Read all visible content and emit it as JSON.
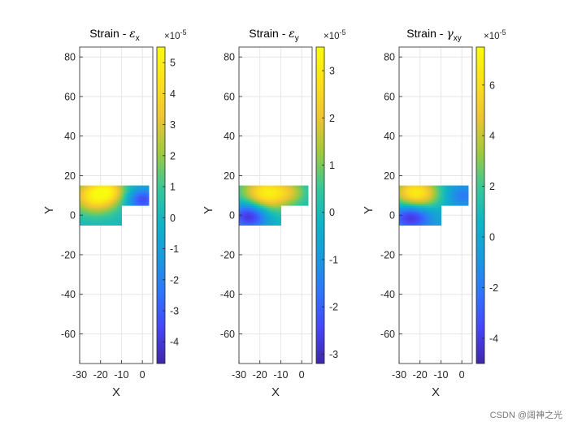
{
  "chart_data": [
    {
      "type": "heatmap",
      "title_main": "Strain - ",
      "title_symbol": "ε",
      "title_sub": "x",
      "xlabel": "X",
      "ylabel": "Y",
      "xlim": [
        -30,
        5
      ],
      "ylim": [
        -75,
        85
      ],
      "xticks": [
        "-30",
        "-20",
        "-10",
        "0"
      ],
      "xtick_values": [
        -30,
        -20,
        -10,
        0
      ],
      "yticks": [
        "80",
        "60",
        "40",
        "20",
        "0",
        "-20",
        "-40",
        "-60"
      ],
      "ytick_values": [
        80,
        60,
        40,
        20,
        0,
        -20,
        -40,
        -60
      ],
      "grid": true,
      "field_region": "L-shaped: x -30..3, y 5..15 and x -30..-10, y -5..5",
      "field_hotspots": [
        {
          "x": -22,
          "y": 10,
          "value": 5.0,
          "spread": 6
        },
        {
          "x": 0,
          "y": 8,
          "value": -3.5,
          "spread": 4
        },
        {
          "x": -15,
          "y": 13,
          "value": 2.0,
          "spread": 4
        }
      ],
      "colorbar": {
        "range": [
          -4.7,
          5.5
        ],
        "ticks": [
          "5",
          "4",
          "3",
          "2",
          "1",
          "0",
          "-1",
          "-2",
          "-3",
          "-4"
        ],
        "tick_values": [
          5,
          4,
          3,
          2,
          1,
          0,
          -1,
          -2,
          -3,
          -4
        ],
        "multiplier": "×10",
        "exponent": "-5"
      }
    },
    {
      "type": "heatmap",
      "title_main": "Strain - ",
      "title_symbol": "ε",
      "title_sub": "y",
      "xlabel": "X",
      "ylabel": "Y",
      "xlim": [
        -30,
        5
      ],
      "ylim": [
        -75,
        85
      ],
      "xticks": [
        "-30",
        "-20",
        "-10",
        "0"
      ],
      "xtick_values": [
        -30,
        -20,
        -10,
        0
      ],
      "yticks": [
        "80",
        "60",
        "40",
        "20",
        "0",
        "-20",
        "-40",
        "-60"
      ],
      "ytick_values": [
        80,
        60,
        40,
        20,
        0,
        -20,
        -40,
        -60
      ],
      "grid": true,
      "field_region": "L-shaped: x -30..3, y 5..15 and x -30..-10, y -5..5",
      "field_hotspots": [
        {
          "x": -17,
          "y": 11,
          "value": 3.2,
          "spread": 6
        },
        {
          "x": -25,
          "y": 0,
          "value": -3.0,
          "spread": 5
        },
        {
          "x": -5,
          "y": 12,
          "value": 1.0,
          "spread": 4
        }
      ],
      "colorbar": {
        "range": [
          -3.2,
          3.5
        ],
        "ticks": [
          "3",
          "2",
          "1",
          "0",
          "-1",
          "-2",
          "-3"
        ],
        "tick_values": [
          3,
          2,
          1,
          0,
          -1,
          -2,
          -3
        ],
        "multiplier": "×10",
        "exponent": "-5"
      }
    },
    {
      "type": "heatmap",
      "title_main": "Strain - ",
      "title_symbol": "γ",
      "title_sub": "xy",
      "xlabel": "X",
      "ylabel": "Y",
      "xlim": [
        -30,
        5
      ],
      "ylim": [
        -75,
        85
      ],
      "xticks": [
        "-30",
        "-20",
        "-10",
        "0"
      ],
      "xtick_values": [
        -30,
        -20,
        -10,
        0
      ],
      "yticks": [
        "80",
        "60",
        "40",
        "20",
        "0",
        "-20",
        "-40",
        "-60"
      ],
      "ytick_values": [
        80,
        60,
        40,
        20,
        0,
        -20,
        -40,
        -60
      ],
      "grid": true,
      "field_region": "L-shaped: x -30..3, y 5..15 and x -30..-10, y -5..5",
      "field_hotspots": [
        {
          "x": -22,
          "y": 11,
          "value": 7.0,
          "spread": 6
        },
        {
          "x": -24,
          "y": 0,
          "value": -5.0,
          "spread": 5
        },
        {
          "x": 0,
          "y": 10,
          "value": -2.0,
          "spread": 4
        }
      ],
      "colorbar": {
        "range": [
          -5.0,
          7.5
        ],
        "ticks": [
          "6",
          "4",
          "2",
          "0",
          "-2",
          "-4"
        ],
        "tick_values": [
          6,
          4,
          2,
          0,
          -2,
          -4
        ],
        "multiplier": "×10",
        "exponent": "-5"
      }
    }
  ],
  "colors": {
    "colormap": [
      "#3e26a8",
      "#4745f7",
      "#2f74fc",
      "#1a99de",
      "#0eb4c6",
      "#37c897",
      "#9fc93e",
      "#eec433",
      "#fbe019",
      "#f9fb0e"
    ],
    "grid": "#e6e6e6",
    "axis": "#262626",
    "text": "#262626"
  },
  "watermark": "CSDN @阔神之光"
}
